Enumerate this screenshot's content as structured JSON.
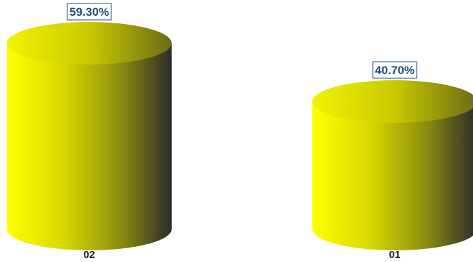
{
  "chart_data": {
    "type": "bar",
    "style": "3d-cylinder",
    "categories": [
      "02",
      "01"
    ],
    "values": [
      59.3,
      40.7
    ],
    "data_labels": [
      "59.30%",
      "40.70%"
    ],
    "title": "",
    "xlabel": "",
    "ylabel": "",
    "ylim": [
      0,
      59.3
    ],
    "grid": false,
    "legend": "none",
    "colors": {
      "bar_light": "#ffff00",
      "bar_dark": "#2b2b2b",
      "label_text": "#1f4e79",
      "label_border": "#1f4e79",
      "tick_text": "#1a1a1a",
      "background": "#ffffff"
    }
  }
}
